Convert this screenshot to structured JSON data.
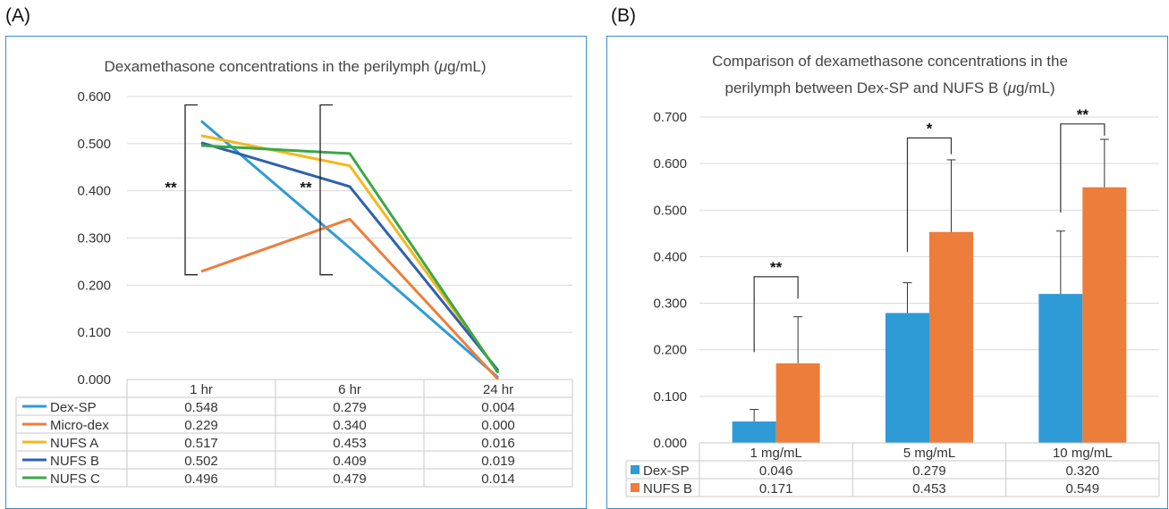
{
  "panel_labels": {
    "a": "(A)",
    "b": "(B)"
  },
  "colors": {
    "dex_sp": "#2e9bd6",
    "micro_dex": "#ed7d3a",
    "nufs_a": "#f5b71d",
    "nufs_b": "#2e61ad",
    "nufs_c": "#3aa845",
    "frame": "#3a8fd0"
  },
  "chart_data": [
    {
      "type": "line",
      "title_main": "Dexamethasone concentrations in the perilymph (",
      "title_unit_italic": "μ",
      "title_unit_rest": "g/mL)",
      "categories": [
        "1 hr",
        "6 hr",
        "24 hr"
      ],
      "ylim": [
        0,
        0.6
      ],
      "yticks": [
        "0.000",
        "0.100",
        "0.200",
        "0.300",
        "0.400",
        "0.500",
        "0.600"
      ],
      "grid": true,
      "legend": "data-table",
      "series": [
        {
          "name": "Dex-SP",
          "values": [
            0.548,
            0.279,
            0.004
          ],
          "labels": [
            "0.548",
            "0.279",
            "0.004"
          ]
        },
        {
          "name": "Micro-dex",
          "values": [
            0.229,
            0.34,
            0.0
          ],
          "labels": [
            "0.229",
            "0.340",
            "0.000"
          ]
        },
        {
          "name": "NUFS A",
          "values": [
            0.517,
            0.453,
            0.016
          ],
          "labels": [
            "0.517",
            "0.453",
            "0.016"
          ]
        },
        {
          "name": "NUFS B",
          "values": [
            0.502,
            0.409,
            0.019
          ],
          "labels": [
            "0.502",
            "0.409",
            "0.019"
          ]
        },
        {
          "name": "NUFS C",
          "values": [
            0.496,
            0.479,
            0.014
          ],
          "labels": [
            "0.496",
            "0.479",
            "0.014"
          ]
        }
      ],
      "annotations": [
        {
          "text": "**",
          "category": "1 hr",
          "range": [
            0.222,
            0.582
          ]
        },
        {
          "text": "**",
          "category": "6 hr",
          "range": [
            0.222,
            0.582
          ]
        }
      ]
    },
    {
      "type": "bar",
      "title_line1": "Comparison of dexamethasone concentrations in the",
      "title_line2_main": "perilymph between Dex-SP and NUFS B (",
      "title_unit_italic": "μ",
      "title_unit_rest": "g/mL)",
      "categories": [
        "1 mg/mL",
        "5 mg/mL",
        "10 mg/mL"
      ],
      "ylim": [
        0,
        0.7
      ],
      "yticks": [
        "0.000",
        "0.100",
        "0.200",
        "0.300",
        "0.400",
        "0.500",
        "0.600",
        "0.700"
      ],
      "grid": true,
      "legend": "data-table",
      "series": [
        {
          "name": "Dex-SP",
          "values": [
            0.046,
            0.279,
            0.32
          ],
          "labels": [
            "0.046",
            "0.279",
            "0.320"
          ],
          "error": [
            0.026,
            0.065,
            0.135
          ]
        },
        {
          "name": "NUFS B",
          "values": [
            0.171,
            0.453,
            0.549
          ],
          "labels": [
            "0.171",
            "0.453",
            "0.549"
          ],
          "error": [
            0.1,
            0.155,
            0.103
          ]
        }
      ],
      "annotations": [
        {
          "text": "**",
          "category": "1 mg/mL",
          "top": 0.357,
          "left_bottom": 0.195,
          "right_bottom": 0.31
        },
        {
          "text": "*",
          "category": "5 mg/mL",
          "top": 0.655,
          "left_bottom": 0.41,
          "right_bottom": 0.62
        },
        {
          "text": "**",
          "category": "10 mg/mL",
          "top": 0.685,
          "left_bottom": 0.495,
          "right_bottom": 0.66
        }
      ]
    }
  ]
}
